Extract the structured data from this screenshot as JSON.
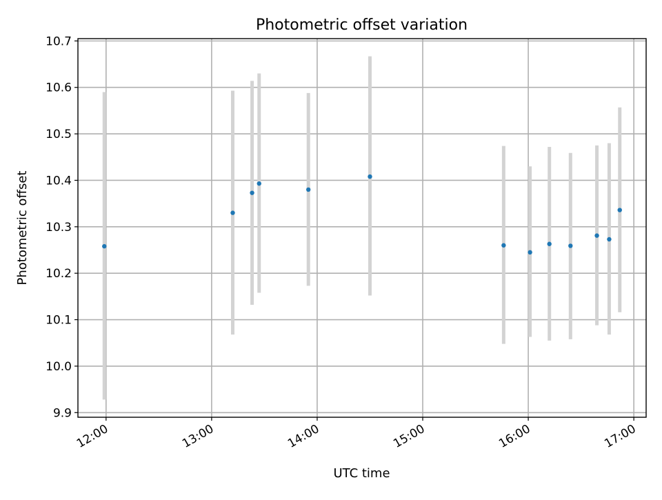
{
  "chart_data": {
    "type": "scatter",
    "title": "Photometric offset variation",
    "xlabel": "UTC time",
    "ylabel": "Photometric offset",
    "grid": true,
    "xlim": [
      "11:44",
      "17:07"
    ],
    "ylim": [
      9.89,
      10.705
    ],
    "x_ticks": [
      "12:00",
      "13:00",
      "14:00",
      "15:00",
      "16:00",
      "17:00"
    ],
    "y_ticks": [
      9.9,
      10.0,
      10.1,
      10.2,
      10.3,
      10.4,
      10.5,
      10.6,
      10.7
    ],
    "y_tick_labels": [
      "9.9",
      "10.0",
      "10.1",
      "10.2",
      "10.3",
      "10.4",
      "10.5",
      "10.6",
      "10.7"
    ],
    "colors": {
      "point": "#1f77b4",
      "errorbar": "#d3d3d3"
    },
    "points": [
      {
        "x": "11:59",
        "y": 10.258,
        "yerr_low": 9.928,
        "yerr_high": 10.59
      },
      {
        "x": "13:12",
        "y": 10.33,
        "yerr_low": 10.068,
        "yerr_high": 10.593
      },
      {
        "x": "13:23",
        "y": 10.373,
        "yerr_low": 10.132,
        "yerr_high": 10.614
      },
      {
        "x": "13:27",
        "y": 10.393,
        "yerr_low": 10.158,
        "yerr_high": 10.63
      },
      {
        "x": "13:55",
        "y": 10.38,
        "yerr_low": 10.173,
        "yerr_high": 10.588
      },
      {
        "x": "14:30",
        "y": 10.408,
        "yerr_low": 10.152,
        "yerr_high": 10.667
      },
      {
        "x": "15:46",
        "y": 10.26,
        "yerr_low": 10.048,
        "yerr_high": 10.474
      },
      {
        "x": "16:01",
        "y": 10.245,
        "yerr_low": 10.063,
        "yerr_high": 10.43
      },
      {
        "x": "16:12",
        "y": 10.263,
        "yerr_low": 10.055,
        "yerr_high": 10.472
      },
      {
        "x": "16:24",
        "y": 10.259,
        "yerr_low": 10.058,
        "yerr_high": 10.459
      },
      {
        "x": "16:39",
        "y": 10.281,
        "yerr_low": 10.088,
        "yerr_high": 10.475
      },
      {
        "x": "16:46",
        "y": 10.273,
        "yerr_low": 10.068,
        "yerr_high": 10.48
      },
      {
        "x": "16:52",
        "y": 10.336,
        "yerr_low": 10.116,
        "yerr_high": 10.557
      }
    ]
  }
}
